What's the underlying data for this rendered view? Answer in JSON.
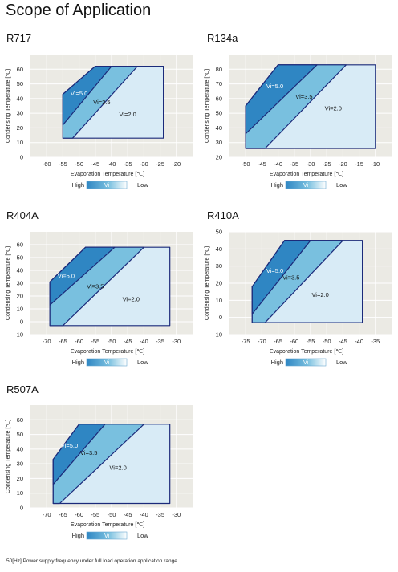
{
  "page_title": "Scope of Application",
  "footnote": "50[Hz] Power supply frequency under full load operation application range.",
  "colors": {
    "plot_bg": "#ebeae4",
    "vi50": "#2f86c3",
    "vi35": "#79c0df",
    "vi20": "#d8ebf6",
    "outline": "#1b2a7a"
  },
  "chart_data": [
    {
      "name": "R717",
      "type": "area",
      "xlabel": "Evaporation Temperature [℃]",
      "ylabel": "Condensing Temperature [℃]",
      "xlim": [
        -65,
        -15
      ],
      "ylim": [
        0,
        70
      ],
      "xticks": [
        -60,
        -55,
        -50,
        -45,
        -40,
        -35,
        -30,
        -25,
        -20
      ],
      "yticks": [
        0,
        10,
        20,
        30,
        40,
        50,
        60
      ],
      "regions": [
        {
          "name": "Vi=2.0",
          "label_at": [
            -35,
            28
          ],
          "points": [
            [
              -55,
              13
            ],
            [
              -55,
              43
            ],
            [
              -45,
              62
            ],
            [
              -24,
              62
            ],
            [
              -24,
              13
            ]
          ]
        },
        {
          "name": "Vi=3.5",
          "label_at": [
            -43,
            36
          ],
          "points": [
            [
              -55,
              13
            ],
            [
              -55,
              43
            ],
            [
              -45,
              62
            ],
            [
              -32,
              62
            ],
            [
              -52,
              13
            ]
          ]
        },
        {
          "name": "Vi=5.0",
          "label_at": [
            -50,
            42
          ],
          "points": [
            [
              -55,
              22
            ],
            [
              -55,
              43
            ],
            [
              -45,
              62
            ],
            [
              -40,
              62
            ]
          ]
        }
      ],
      "legend": {
        "high": "High",
        "mid": "Vi",
        "low": "Low"
      }
    },
    {
      "name": "R134a",
      "type": "area",
      "xlabel": "Evaporation Temperature [℃]",
      "ylabel": "Condensing Temperature [℃]",
      "xlim": [
        -55,
        -5
      ],
      "ylim": [
        20,
        90
      ],
      "xticks": [
        -50,
        -45,
        -40,
        -35,
        -30,
        -25,
        -20,
        -15,
        -10
      ],
      "yticks": [
        20,
        30,
        40,
        50,
        60,
        70,
        80
      ],
      "regions": [
        {
          "name": "Vi=2.0",
          "label_at": [
            -23,
            52
          ],
          "points": [
            [
              -50,
              26
            ],
            [
              -50,
              55
            ],
            [
              -40,
              83
            ],
            [
              -10,
              83
            ],
            [
              -10,
              26
            ]
          ]
        },
        {
          "name": "Vi=3.5",
          "label_at": [
            -32,
            60
          ],
          "points": [
            [
              -50,
              26
            ],
            [
              -50,
              55
            ],
            [
              -40,
              83
            ],
            [
              -19,
              83
            ],
            [
              -44,
              26
            ]
          ]
        },
        {
          "name": "Vi=5.0",
          "label_at": [
            -41,
            67
          ],
          "points": [
            [
              -50,
              36
            ],
            [
              -50,
              55
            ],
            [
              -40,
              83
            ],
            [
              -28,
              83
            ]
          ]
        }
      ],
      "legend": {
        "high": "High",
        "mid": "Vi",
        "low": "Low"
      }
    },
    {
      "name": "R404A",
      "type": "area",
      "xlabel": "Evaporation Temperature [℃]",
      "ylabel": "Condensing Temperature [℃]",
      "xlim": [
        -75,
        -25
      ],
      "ylim": [
        -10,
        70
      ],
      "xticks": [
        -70,
        -65,
        -60,
        -55,
        -50,
        -45,
        -40,
        -35,
        -30
      ],
      "yticks": [
        -10,
        0,
        10,
        20,
        30,
        40,
        50,
        60
      ],
      "regions": [
        {
          "name": "Vi=2.0",
          "label_at": [
            -44,
            16
          ],
          "points": [
            [
              -69,
              -3
            ],
            [
              -69,
              31
            ],
            [
              -58,
              58
            ],
            [
              -32,
              58
            ],
            [
              -32,
              -3
            ]
          ]
        },
        {
          "name": "Vi=3.5",
          "label_at": [
            -55,
            26
          ],
          "points": [
            [
              -69,
              -3
            ],
            [
              -69,
              31
            ],
            [
              -58,
              58
            ],
            [
              -40,
              58
            ],
            [
              -65,
              -3
            ]
          ]
        },
        {
          "name": "Vi=5.0",
          "label_at": [
            -64,
            34
          ],
          "points": [
            [
              -69,
              13
            ],
            [
              -69,
              31
            ],
            [
              -58,
              58
            ],
            [
              -49,
              58
            ]
          ]
        }
      ],
      "legend": {
        "high": "High",
        "mid": "Vi",
        "low": "Low"
      }
    },
    {
      "name": "R410A",
      "type": "area",
      "xlabel": "Evaporation Temperature [℃]",
      "ylabel": "Condensing Temperature [℃]",
      "xlim": [
        -80,
        -30
      ],
      "ylim": [
        -10,
        50
      ],
      "xticks": [
        -75,
        -70,
        -65,
        -60,
        -55,
        -50,
        -45,
        -40,
        -35
      ],
      "yticks": [
        -10,
        0,
        10,
        20,
        30,
        40,
        50
      ],
      "regions": [
        {
          "name": "Vi=2.0",
          "label_at": [
            -52,
            12
          ],
          "points": [
            [
              -73,
              -3
            ],
            [
              -73,
              18
            ],
            [
              -63,
              45
            ],
            [
              -39,
              45
            ],
            [
              -39,
              -3
            ]
          ]
        },
        {
          "name": "Vi=3.5",
          "label_at": [
            -61,
            22
          ],
          "points": [
            [
              -73,
              -3
            ],
            [
              -73,
              18
            ],
            [
              -63,
              45
            ],
            [
              -45,
              45
            ],
            [
              -69,
              -3
            ]
          ]
        },
        {
          "name": "Vi=5.0",
          "label_at": [
            -66,
            26
          ],
          "points": [
            [
              -73,
              2
            ],
            [
              -73,
              18
            ],
            [
              -63,
              45
            ],
            [
              -55,
              45
            ]
          ]
        }
      ],
      "legend": {
        "high": "High",
        "mid": "Vi",
        "low": "Low"
      }
    },
    {
      "name": "R507A",
      "type": "area",
      "xlabel": "Evaporation Temperature [℃]",
      "ylabel": "Condensing Temperature [℃]",
      "xlim": [
        -75,
        -25
      ],
      "ylim": [
        0,
        70
      ],
      "xticks": [
        -70,
        -65,
        -60,
        -55,
        -50,
        -45,
        -40,
        -35,
        -30
      ],
      "yticks": [
        0,
        10,
        20,
        30,
        40,
        50,
        60
      ],
      "regions": [
        {
          "name": "Vi=2.0",
          "label_at": [
            -48,
            26
          ],
          "points": [
            [
              -68,
              3
            ],
            [
              -68,
              33
            ],
            [
              -60,
              57
            ],
            [
              -32,
              57
            ],
            [
              -32,
              3
            ]
          ]
        },
        {
          "name": "Vi=3.5",
          "label_at": [
            -57,
            36
          ],
          "points": [
            [
              -68,
              3
            ],
            [
              -68,
              33
            ],
            [
              -60,
              57
            ],
            [
              -40,
              57
            ],
            [
              -66,
              3
            ]
          ]
        },
        {
          "name": "Vi=5.0",
          "label_at": [
            -63,
            41
          ],
          "points": [
            [
              -68,
              16
            ],
            [
              -68,
              33
            ],
            [
              -60,
              57
            ],
            [
              -52,
              57
            ]
          ]
        }
      ],
      "legend": {
        "high": "High",
        "mid": "Vi",
        "low": "Low"
      }
    }
  ]
}
